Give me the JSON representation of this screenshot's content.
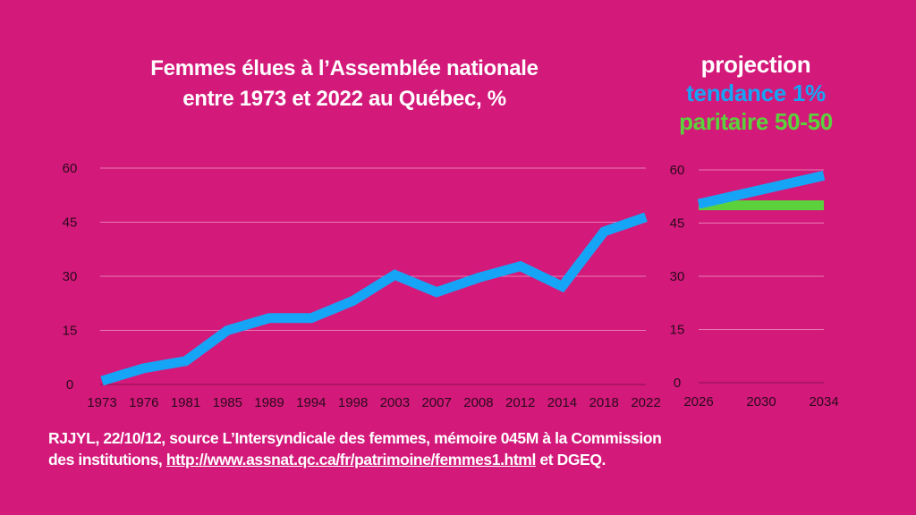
{
  "title": [
    "Femmes élues à l’Assemblée nationale",
    "entre 1973 et 2022 au Québec, %"
  ],
  "legend": {
    "heading": "projection",
    "items": [
      {
        "label": "tendance 1%",
        "color": "#16A5F6"
      },
      {
        "label": "paritaire 50-50",
        "color": "#5BD23C"
      }
    ]
  },
  "footer": {
    "line1": "RJJYL, 22/10/12, source L’Intersyndicale des femmes, mémoire 045M à la Commission",
    "line2_prefix": "des institutions, ",
    "link": "http://www.assnat.qc.ca/fr/patrimoine/femmes1.html",
    "line2_suffix": " et DGEQ."
  },
  "colors": {
    "background": "#D3197A",
    "line": "#16A5F6",
    "parity": "#5BD23C",
    "grid": "#E87BB4"
  },
  "chart_data": [
    {
      "type": "line",
      "categories": [
        "1973",
        "1976",
        "1981",
        "1985",
        "1989",
        "1994",
        "1998",
        "2003",
        "2007",
        "2008",
        "2012",
        "2014",
        "2018",
        "2022"
      ],
      "series": [
        {
          "values": [
            1,
            4.5,
            6.5,
            15,
            18.4,
            18.4,
            23.2,
            30.4,
            25.6,
            29.6,
            32.8,
            27.2,
            42.4,
            46.4
          ],
          "color": "#16A5F6"
        }
      ],
      "yticks": [
        0,
        15,
        30,
        45,
        60
      ],
      "ylim": [
        0,
        60
      ],
      "grid": true
    },
    {
      "type": "line",
      "categories": [
        "2026",
        "2030",
        "2034"
      ],
      "xlim": [
        2026,
        2034
      ],
      "series": [
        {
          "name": "tendance 1%",
          "x": [
            2026,
            2034
          ],
          "values": [
            50.4,
            58.4
          ],
          "color": "#16A5F6"
        },
        {
          "name": "paritaire 50-50",
          "x": [
            2026,
            2034
          ],
          "values": [
            50,
            50
          ],
          "color": "#5BD23C"
        }
      ],
      "yticks": [
        0,
        15,
        30,
        45,
        60
      ],
      "ylim": [
        0,
        60
      ],
      "grid": true
    }
  ]
}
